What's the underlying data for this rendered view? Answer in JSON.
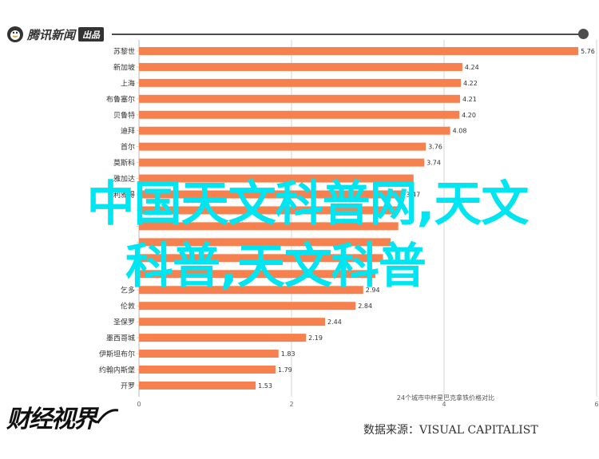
{
  "header": {
    "brand_name": "腾讯新闻",
    "brand_badge": "出品",
    "icon": "tencent-penguin-icon"
  },
  "footer": {
    "brand_name": "财经视界",
    "source_text": "数据来源：VISUAL CAPITALIST"
  },
  "overlay": {
    "line1": "中国天文科普网,天文",
    "line2": "科普,天文科普"
  },
  "colors": {
    "bar": "#f7814e",
    "overlay": "#00e5f2",
    "axis": "#cccccc"
  },
  "chart_data": {
    "type": "bar",
    "orientation": "horizontal",
    "categories": [
      "苏黎世",
      "新加坡",
      "上海",
      "布鲁塞尔",
      "贝鲁特",
      "迪拜",
      "首尔",
      "莫斯科",
      "雅加达",
      "利雅得",
      "",
      "",
      "",
      "",
      "",
      "乞多",
      "伦敦",
      "圣保罗",
      "墨西哥城",
      "伊斯坦布尔",
      "约翰内斯堡",
      "开罗"
    ],
    "values": [
      5.76,
      4.24,
      4.22,
      4.21,
      4.2,
      4.08,
      3.76,
      3.74,
      3.6,
      3.47,
      3.4,
      3.4,
      3.3,
      3.2,
      3.1,
      2.94,
      2.84,
      2.44,
      2.19,
      1.83,
      1.79,
      1.53
    ],
    "value_labels": [
      "5.76",
      "4.24",
      "4.22",
      "4.21",
      "4.20",
      "4.08",
      "3.76",
      "3.74",
      "",
      "3.47",
      "",
      "",
      "",
      "",
      "",
      "2.94",
      "2.84",
      "2.44",
      "2.19",
      "1.83",
      "1.79",
      "1.53"
    ],
    "xlim": [
      0,
      6
    ],
    "xticks": [
      0,
      2,
      4,
      6
    ],
    "xlabel": "24个城市中杯星巴克拿铁价格对比",
    "grid": true
  }
}
